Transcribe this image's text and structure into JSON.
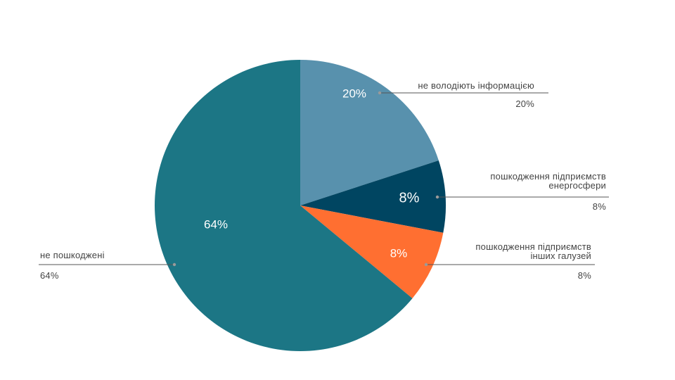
{
  "chart_data": {
    "type": "pie",
    "slices": [
      {
        "label": "не володіють інформацією",
        "value": 20,
        "pct_label": "20%",
        "color": "#5891AD"
      },
      {
        "label": "пошкодження підприємств енергосфери",
        "value": 8,
        "pct_label": "8%",
        "color": "#004561"
      },
      {
        "label": "пошкодження підприємств інших галузей",
        "value": 8,
        "pct_label": "8%",
        "color": "#FF6F31"
      },
      {
        "label": "не пошкоджені",
        "value": 64,
        "pct_label": "64%",
        "color": "#1C7685"
      }
    ],
    "callouts": [
      {
        "lines": [
          "не володіють інформацією"
        ],
        "value": "20%"
      },
      {
        "lines": [
          "пошкодження підприємств",
          "енергосфери"
        ],
        "value": "8%"
      },
      {
        "lines": [
          "пошкодження підприємств",
          "інших галузей"
        ],
        "value": "8%"
      },
      {
        "lines": [
          "не пошкоджені"
        ],
        "value": "64%"
      }
    ]
  }
}
